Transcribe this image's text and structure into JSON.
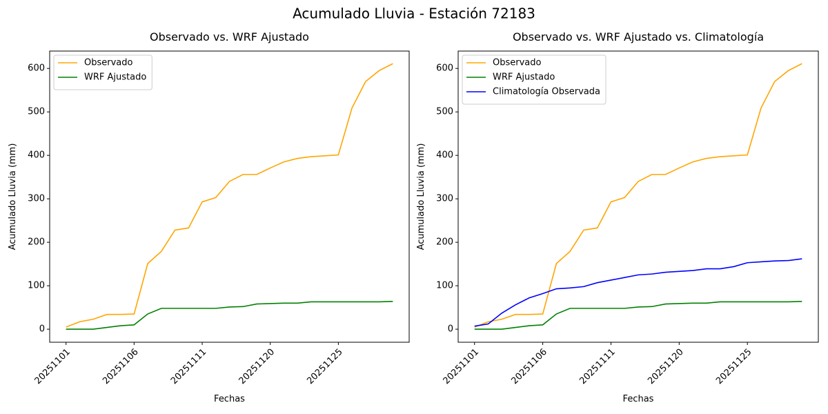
{
  "title": "Acumulado Lluvia - Estación 72183",
  "chart_data": [
    {
      "type": "line",
      "title": "Observado vs. WRF Ajustado",
      "xlabel": "Fechas",
      "ylabel": "Acumulado Lluvia (mm)",
      "categories": [
        "20251101",
        null,
        null,
        null,
        null,
        "20251106",
        null,
        null,
        null,
        null,
        "20251111",
        null,
        null,
        null,
        null,
        "20251120",
        null,
        null,
        null,
        null,
        "20251125",
        null,
        null,
        null,
        null
      ],
      "series": [
        {
          "name": "Observado",
          "color": "orange",
          "values": [
            5,
            17,
            23,
            34,
            34,
            35,
            151,
            179,
            228,
            233,
            293,
            303,
            340,
            356,
            356,
            371,
            385,
            393,
            397,
            399,
            401,
            509,
            570,
            595,
            611
          ]
        },
        {
          "name": "WRF Ajustado",
          "color": "green",
          "values": [
            0,
            0,
            0,
            4,
            8,
            10,
            35,
            48,
            48,
            48,
            48,
            48,
            51,
            52,
            58,
            59,
            60,
            60,
            63,
            63,
            63,
            63,
            63,
            63,
            64
          ]
        }
      ],
      "ylim": [
        -30,
        640
      ],
      "yticks": [
        0,
        100,
        200,
        300,
        400,
        500,
        600
      ],
      "legend": "upper left"
    },
    {
      "type": "line",
      "title": "Observado vs. WRF Ajustado vs. Climatología",
      "xlabel": "Fechas",
      "ylabel": "Acumulado Lluvia (mm)",
      "categories": [
        "20251101",
        null,
        null,
        null,
        null,
        "20251106",
        null,
        null,
        null,
        null,
        "20251111",
        null,
        null,
        null,
        null,
        "20251120",
        null,
        null,
        null,
        null,
        "20251125",
        null,
        null,
        null,
        null
      ],
      "series": [
        {
          "name": "Observado",
          "color": "orange",
          "values": [
            5,
            17,
            23,
            34,
            34,
            35,
            151,
            179,
            228,
            233,
            293,
            303,
            340,
            356,
            356,
            371,
            385,
            393,
            397,
            399,
            401,
            509,
            570,
            595,
            611
          ]
        },
        {
          "name": "WRF Ajustado",
          "color": "green",
          "values": [
            0,
            0,
            0,
            4,
            8,
            10,
            35,
            48,
            48,
            48,
            48,
            48,
            51,
            52,
            58,
            59,
            60,
            60,
            63,
            63,
            63,
            63,
            63,
            63,
            64
          ]
        },
        {
          "name": "Climatología Observada",
          "color": "blue",
          "values": [
            7,
            12,
            37,
            56,
            72,
            82,
            93,
            95,
            98,
            107,
            113,
            119,
            125,
            127,
            131,
            133,
            135,
            139,
            139,
            144,
            153,
            155,
            157,
            158,
            162
          ]
        }
      ],
      "ylim": [
        -30,
        640
      ],
      "yticks": [
        0,
        100,
        200,
        300,
        400,
        500,
        600
      ],
      "legend": "upper left"
    }
  ]
}
